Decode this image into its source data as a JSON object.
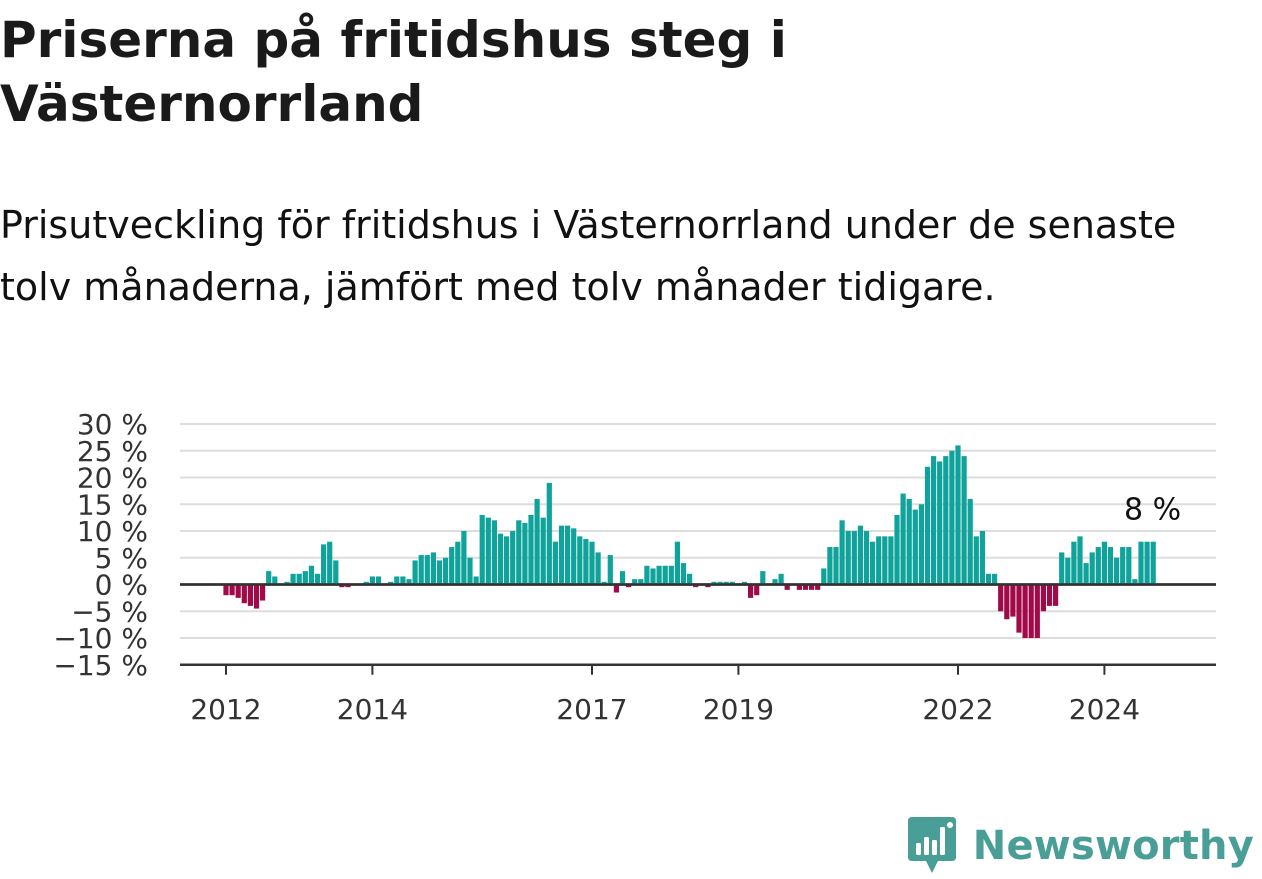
{
  "title": "Priserna på fritidshus steg i Västernorrland",
  "subtitle": "Prisutveckling för fritidshus i Västernorrland under de senaste tolv månaderna, jämfört med tolv månader tidigare.",
  "brand": {
    "name": "Newsworthy",
    "icon": "newsworthy-logo-icon",
    "color": "#4a9e98"
  },
  "colors": {
    "positive": "#0fa39b",
    "negative": "#a10a48",
    "grid": "#dddddd",
    "axis": "#333333"
  },
  "chart_data": {
    "type": "bar",
    "title": "Priserna på fritidshus steg i Västernorrland",
    "xlabel": "",
    "ylabel": "",
    "ylim": [
      -15,
      30
    ],
    "y_ticks": [
      30,
      25,
      20,
      15,
      10,
      5,
      0,
      -5,
      -10,
      -15
    ],
    "y_tick_labels": [
      "30 %",
      "25 %",
      "20 %",
      "15 %",
      "10 %",
      "5 %",
      "0 %",
      "−5 %",
      "−10 %",
      "−15 %"
    ],
    "x_tick_labels": [
      {
        "label": "2012",
        "index": 0
      },
      {
        "label": "2014",
        "index": 24
      },
      {
        "label": "2017",
        "index": 60
      },
      {
        "label": "2019",
        "index": 84
      },
      {
        "label": "2022",
        "index": 120
      },
      {
        "label": "2024",
        "index": 144
      }
    ],
    "grid": true,
    "annotation": "8 %",
    "start": "2012-01",
    "frequency": "monthly",
    "series": [
      {
        "values": [
          -2,
          -2,
          -2.5,
          -3.5,
          -4,
          -4.5,
          -3,
          2.5,
          1.5,
          0,
          0.5,
          2,
          2,
          2.5,
          3.5,
          2,
          7.5,
          8,
          4.5,
          -0.5,
          -0.5,
          0,
          0,
          0.5,
          1.5,
          1.5,
          0,
          0.5,
          1.5,
          1.5,
          1,
          4.5,
          5.5,
          5.5,
          6,
          4.5,
          5,
          7,
          8,
          10,
          5,
          1.5,
          13,
          12.5,
          12,
          9.5,
          9,
          10,
          12,
          11.5,
          13,
          16,
          12.5,
          19,
          8,
          11,
          11,
          10.5,
          9,
          8.5,
          8,
          6,
          0.5,
          5.5,
          -1.5,
          2.5,
          -0.5,
          1,
          1,
          3.5,
          3,
          3.5,
          3.5,
          3.5,
          8,
          4,
          2,
          -0.5,
          0,
          -0.5,
          0.5,
          0.5,
          0.5,
          0.5,
          0,
          0.5,
          -2.5,
          -2,
          2.5,
          0,
          1,
          2,
          -1,
          0,
          -1,
          -1,
          -1,
          -1,
          3,
          7,
          7,
          12,
          10,
          10,
          11,
          10,
          8,
          9,
          9,
          9,
          13,
          17,
          16,
          14,
          15,
          22,
          24,
          23,
          24,
          25,
          26,
          24,
          16,
          9,
          10,
          2,
          2,
          -5,
          -6.5,
          -6,
          -9,
          -10,
          -10,
          -10,
          -5,
          -4,
          -4,
          6,
          5,
          8,
          9,
          4,
          6,
          7,
          8,
          7,
          5,
          7,
          7,
          1,
          8,
          8,
          8
        ]
      }
    ]
  }
}
